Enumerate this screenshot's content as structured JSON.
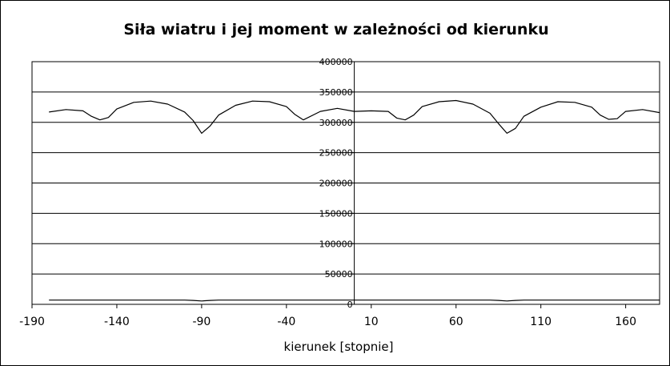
{
  "chart_data": {
    "type": "line",
    "title": "Siła wiatru i jej moment w zależności od kierunku",
    "xlabel": "kierunek [stopnie]",
    "ylabel": "",
    "xlim": [
      -190,
      180
    ],
    "ylim": [
      0,
      400000
    ],
    "xticks": [
      "-190",
      "-140",
      "-90",
      "-40",
      "10",
      "60",
      "110",
      "160"
    ],
    "yticks": [
      "0",
      "50000",
      "100000",
      "150000",
      "200000",
      "250000",
      "300000",
      "350000",
      "400000"
    ],
    "grid": "horizontal",
    "y_axis_at_x": 0,
    "series": [
      {
        "color": "#000000",
        "x": [
          -180,
          -170,
          -160,
          -155,
          -150,
          -145,
          -140,
          -130,
          -120,
          -110,
          -100,
          -95,
          -90,
          -85,
          -80,
          -70,
          -60,
          -50,
          -40,
          -35,
          -30,
          -20,
          -10,
          0,
          10,
          20,
          25,
          30,
          35,
          40,
          50,
          60,
          70,
          80,
          85,
          90,
          95,
          100,
          110,
          120,
          130,
          140,
          145,
          150,
          155,
          160,
          170,
          180
        ],
        "y": [
          317000,
          321000,
          319000,
          310000,
          304000,
          308000,
          322000,
          333000,
          335000,
          330000,
          317000,
          303000,
          282000,
          294000,
          312000,
          328000,
          335000,
          334000,
          326000,
          313000,
          304000,
          318000,
          323000,
          318000,
          319000,
          318000,
          307000,
          304000,
          312000,
          326000,
          334000,
          336000,
          330000,
          315000,
          298000,
          282000,
          290000,
          310000,
          325000,
          334000,
          333000,
          325000,
          312000,
          305000,
          306000,
          318000,
          321000,
          316000
        ]
      },
      {
        "color": "#000000",
        "x": [
          -180,
          -100,
          -95,
          -90,
          -85,
          -80,
          0,
          80,
          85,
          90,
          95,
          100,
          180
        ],
        "y": [
          7000,
          7000,
          6500,
          5500,
          6500,
          7000,
          7000,
          7000,
          6500,
          5500,
          6500,
          7000,
          7000
        ]
      }
    ]
  }
}
